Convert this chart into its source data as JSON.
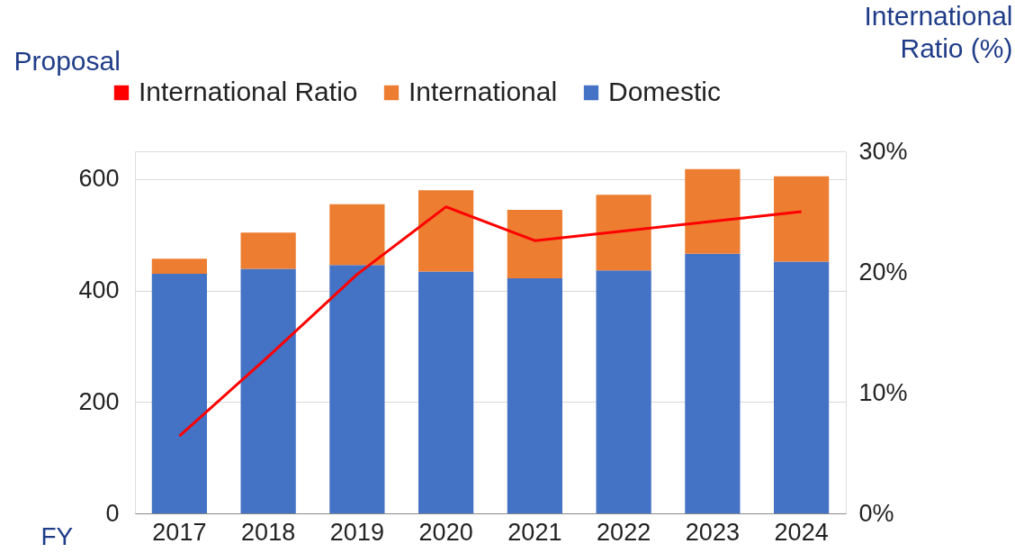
{
  "chart_data": {
    "type": "bar",
    "stacked": true,
    "ylabel": "Proposal",
    "y2label": "International Ratio (%)",
    "xlabel": "FY",
    "categories": [
      "2017",
      "2018",
      "2019",
      "2020",
      "2021",
      "2022",
      "2023",
      "2024"
    ],
    "series": [
      {
        "name": "Domestic",
        "color": "#4472c4",
        "values": [
          430,
          439,
          446,
          434,
          422,
          436,
          466,
          452
        ]
      },
      {
        "name": "International",
        "color": "#ed7d31",
        "values": [
          27,
          65,
          109,
          146,
          123,
          136,
          152,
          153
        ]
      },
      {
        "name": "International Ratio",
        "type": "line",
        "axis": "y2",
        "color": "#ff0000",
        "marker": "none",
        "line_style": "solid",
        "values": [
          6.4,
          13.0,
          19.8,
          25.4,
          22.6,
          23.4,
          24.2,
          25.0
        ]
      }
    ],
    "ylim": [
      0,
      650
    ],
    "yticks": [
      0,
      200,
      400,
      600
    ],
    "y2lim": [
      0,
      30
    ],
    "y2ticks": [
      {
        "value": 0,
        "label": "0%"
      },
      {
        "value": 10,
        "label": "10%"
      },
      {
        "value": 20,
        "label": "20%"
      },
      {
        "value": 30,
        "label": "30%"
      }
    ],
    "grid": "y",
    "legend": "top"
  }
}
